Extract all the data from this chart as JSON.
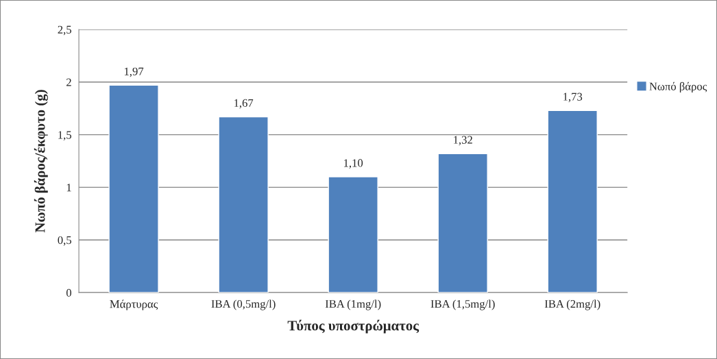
{
  "chart_data": {
    "type": "bar",
    "xlabel": "Τύπος υποστρώματος",
    "ylabel": "Νωπό βάρος/έκφυτο (g)",
    "categories": [
      "Μάρτυρας",
      "IBA (0,5mg/l)",
      "IBA (1mg/l)",
      "IBA (1,5mg/l)",
      "IBA (2mg/l)"
    ],
    "series": [
      {
        "name": "Νωπό βάρος",
        "color": "#4f81bd",
        "values": [
          1.97,
          1.67,
          1.1,
          1.32,
          1.73
        ],
        "value_labels": [
          "1,97",
          "1,67",
          "1,10",
          "1,32",
          "1,73"
        ]
      }
    ],
    "ylim": [
      0,
      2.5
    ],
    "yticks": [
      0,
      {
        "value": 0.5,
        "label": "0,5"
      },
      1,
      {
        "value": 1.5,
        "label": "1,5"
      },
      2,
      {
        "value": 2.5,
        "label": "2,5"
      }
    ],
    "grid": "y",
    "legend": "right"
  }
}
